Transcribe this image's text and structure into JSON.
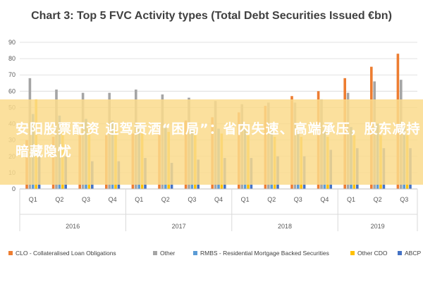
{
  "chart_data": {
    "type": "bar",
    "title": "Chart 3: Top 5 FVC Activity types (Total Debt Securities Issued €bn)",
    "xlabel": "",
    "ylabel": "",
    "ylim": [
      0,
      90
    ],
    "yticks": [
      0,
      10,
      20,
      30,
      40,
      50,
      60,
      70,
      80,
      90
    ],
    "grid": true,
    "legend_position": "bottom",
    "categories": [
      "Q1",
      "Q2",
      "Q3",
      "Q4",
      "Q1",
      "Q2",
      "Q3",
      "Q4",
      "Q1",
      "Q2",
      "Q3",
      "Q4",
      "Q1",
      "Q2",
      "Q3"
    ],
    "year_groups": [
      {
        "label": "2016",
        "quarters": 4
      },
      {
        "label": "2017",
        "quarters": 4
      },
      {
        "label": "2018",
        "quarters": 4
      },
      {
        "label": "2019",
        "quarters": 3
      }
    ],
    "series": [
      {
        "name": "CLO - Collateralised Loan Obligations",
        "color": "#ED7D31",
        "values": [
          30,
          32,
          33,
          33,
          34,
          38,
          42,
          44,
          47,
          51,
          57,
          60,
          68,
          75,
          83
        ]
      },
      {
        "name": "Other",
        "color": "#A5A5A5",
        "values": [
          68,
          61,
          59,
          59,
          61,
          58,
          56,
          54,
          52,
          53,
          53,
          55,
          59,
          66,
          67
        ]
      },
      {
        "name": "RMBS - Residential Mortgage Backed Securities",
        "color": "#5B9BD5",
        "values": [
          46,
          45,
          43,
          42,
          38,
          38,
          37,
          37,
          37,
          36,
          35,
          37,
          38,
          40,
          38
        ]
      },
      {
        "name": "Other CDO",
        "color": "#FFC000",
        "values": [
          55,
          40,
          38,
          37,
          35,
          35,
          35,
          34,
          33,
          32,
          32,
          32,
          33,
          33,
          33
        ]
      },
      {
        "name": "ABCP",
        "color": "#4472C4",
        "values": [
          22,
          20,
          17,
          17,
          19,
          16,
          18,
          19,
          19,
          20,
          20,
          24,
          25,
          25,
          25
        ]
      }
    ]
  },
  "overlay": {
    "headline": "安阳股票配资 迎驾贡酒“困局”：省内失速、高端承压，股东减持暗藏隐忧"
  }
}
